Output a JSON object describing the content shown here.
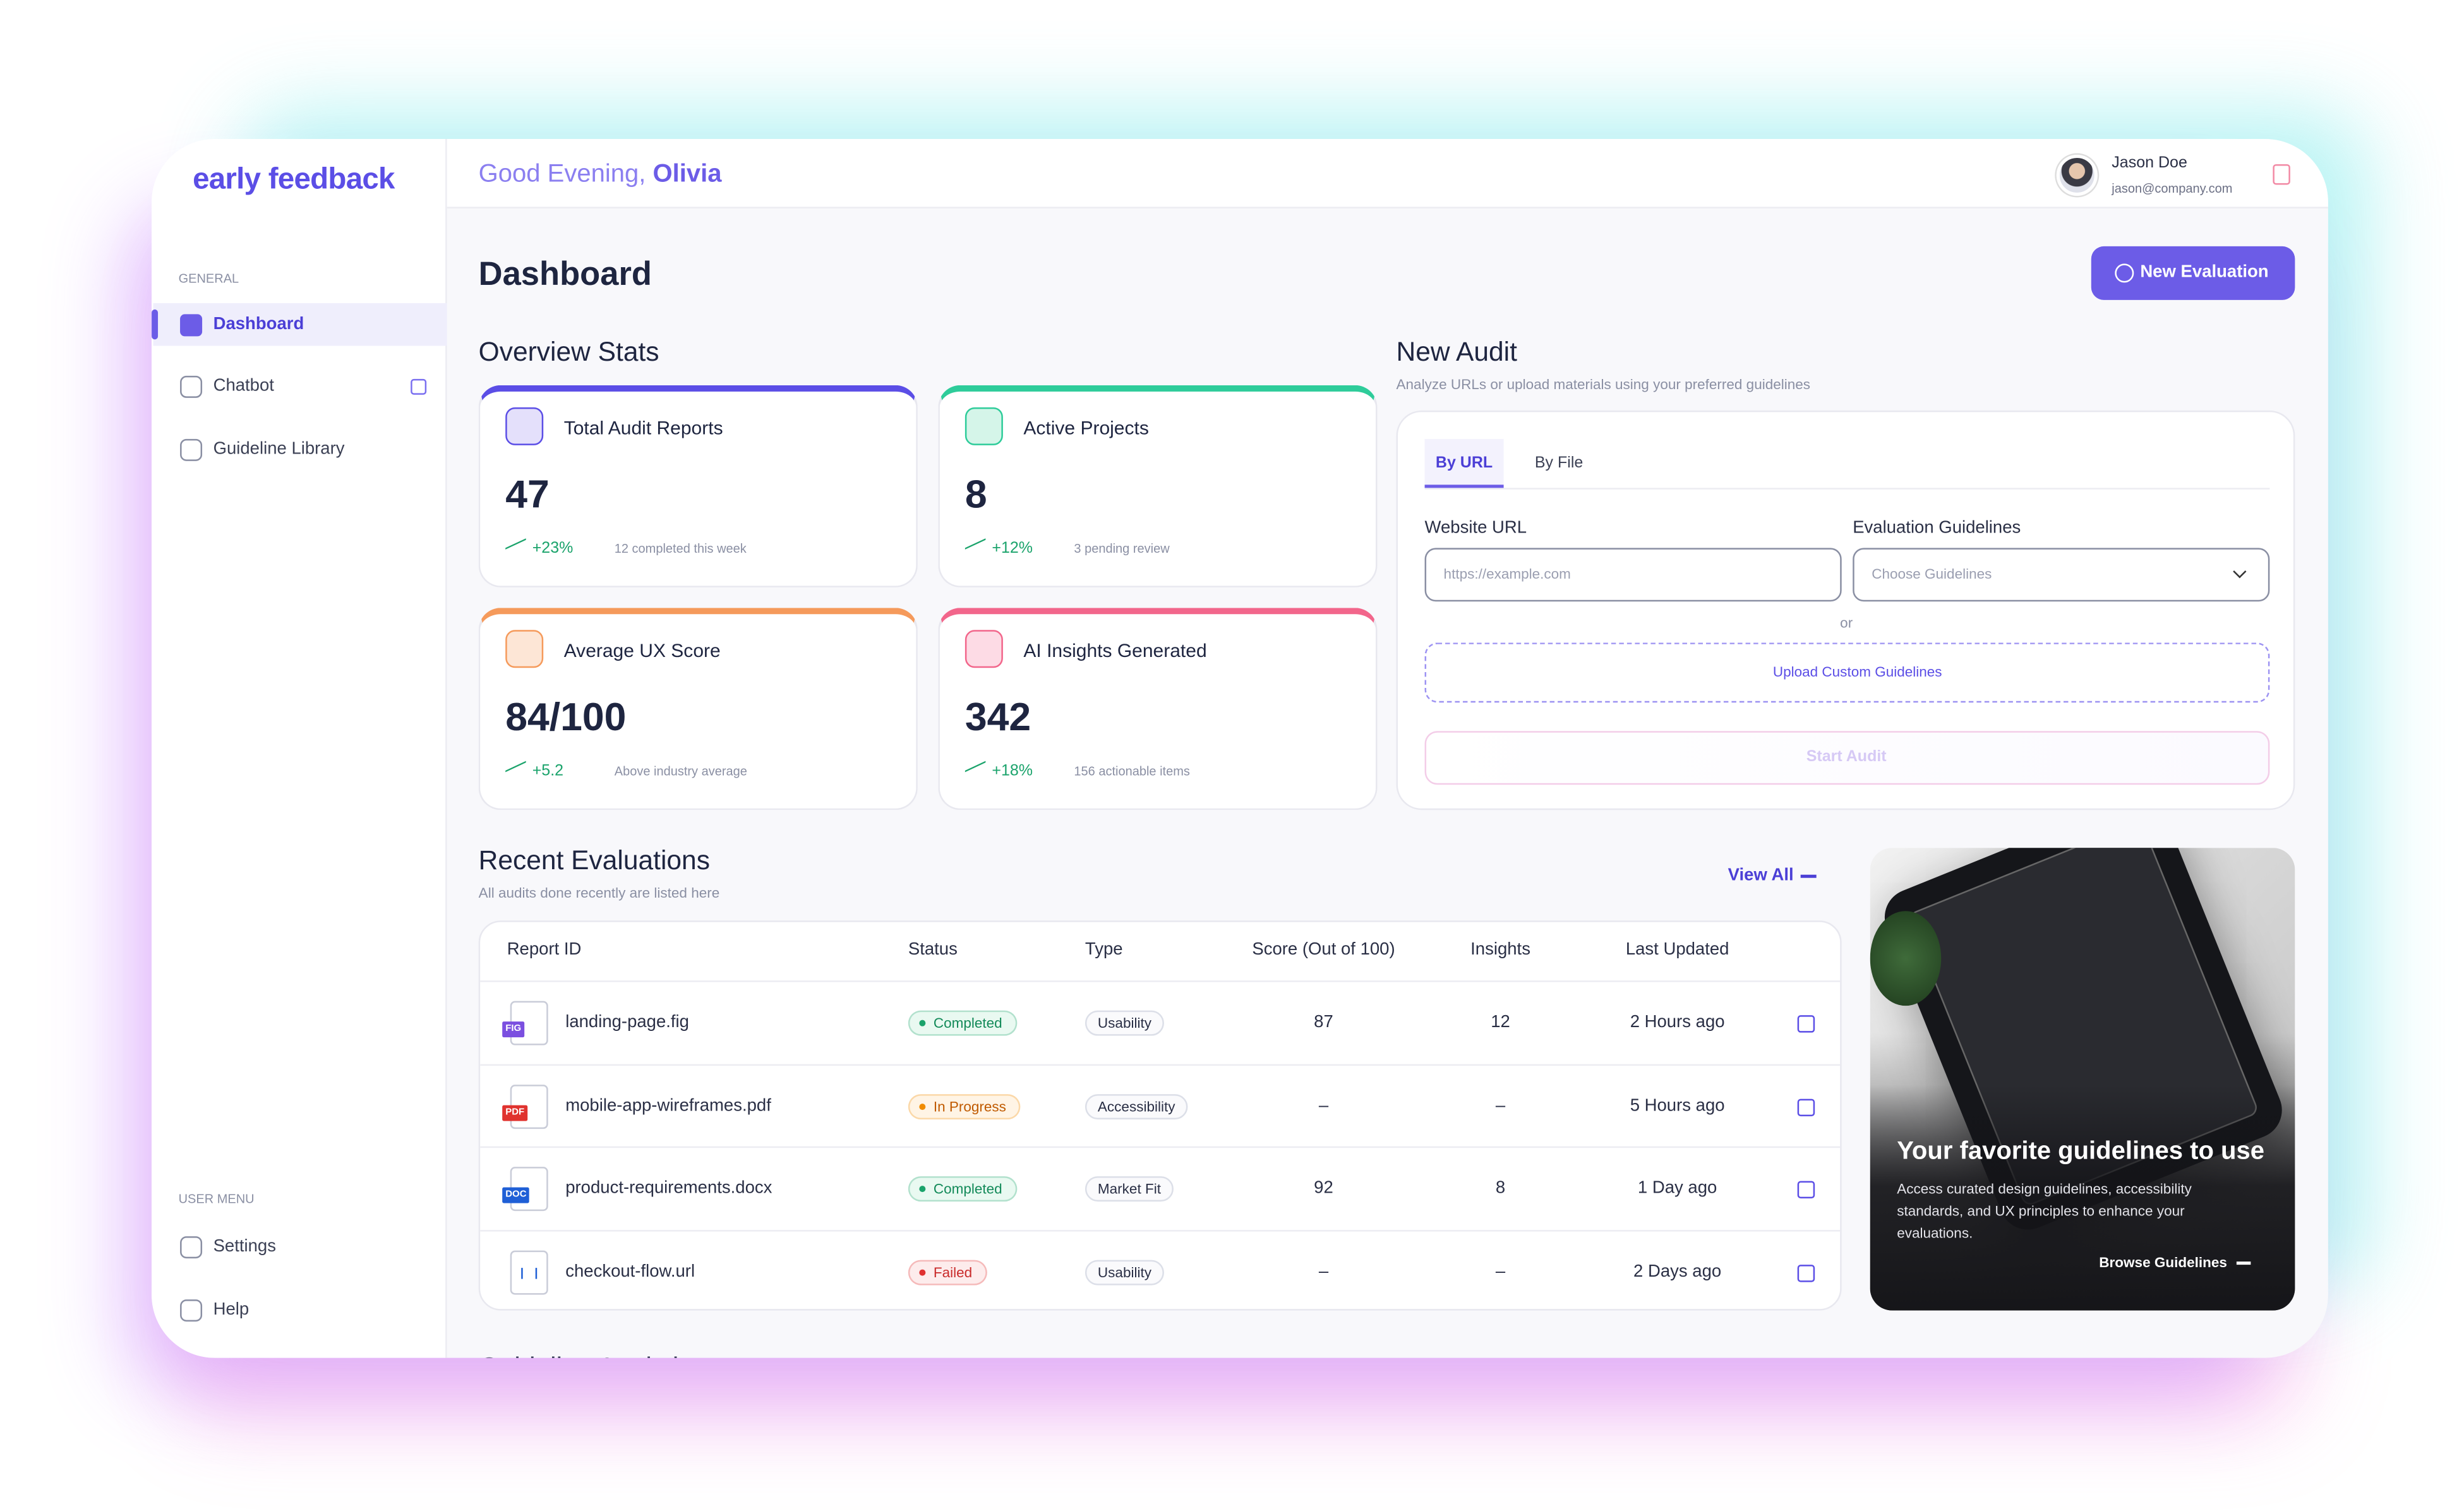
{
  "brand": "early feedback",
  "header": {
    "greeting": "Good Evening,",
    "name": "Olivia",
    "user_name": "Jason Doe",
    "user_email": "jason@company.com"
  },
  "sidebar": {
    "sections": [
      {
        "label": "GENERAL",
        "items": [
          "Dashboard",
          "Chatbot",
          "Guideline Library"
        ]
      },
      {
        "label": "USER MENU",
        "items": [
          "Settings",
          "Help"
        ]
      }
    ]
  },
  "page": {
    "title": "Dashboard",
    "new_button": "New Evaluation"
  },
  "overview": {
    "title": "Overview Stats",
    "stats": [
      {
        "title": "Total Audit Reports",
        "value": 47,
        "change": "+23%",
        "note": "12 completed this week"
      },
      {
        "title": "Active Projects",
        "value": 8,
        "change": "+12%",
        "note": "3 pending review"
      },
      {
        "title": "Average UX Score",
        "value": "84/100",
        "change": "+5.2",
        "note": "Above industry average"
      },
      {
        "title": "AI Insights Generated",
        "value": 342,
        "change": "+18%",
        "note": "156 actionable items"
      }
    ]
  },
  "new_audit": {
    "title": "New Audit",
    "subtitle": "Analyze URLs or upload materials using your preferred guidelines",
    "tabs": [
      "By URL",
      "By File"
    ],
    "url_label": "Website URL",
    "url_placeholder": "https://example.com",
    "guidelines_label": "Evaluation Guidelines",
    "guidelines_placeholder": "Choose Guidelines",
    "or": "or",
    "upload": "Upload Custom Guidelines",
    "start": "Start Audit"
  },
  "recent": {
    "title": "Recent Evaluations",
    "subtitle": "All audits done recently are listed here",
    "view_all": "View All",
    "columns": [
      "Report ID",
      "Status",
      "Type",
      "Score (Out of 100)",
      "Insights",
      "Last Updated"
    ],
    "rows": [
      {
        "file_type": "FIG",
        "report": "landing-page.fig",
        "status": "Completed",
        "type": "Usability",
        "score": 87,
        "insights": 12,
        "updated": "2 Hours ago"
      },
      {
        "file_type": "PDF",
        "report": "mobile-app-wireframes.pdf",
        "status": "In Progress",
        "type": "Accessibility",
        "score": "–",
        "insights": "–",
        "updated": "5 Hours ago"
      },
      {
        "file_type": "DOC",
        "report": "product-requirements.docx",
        "status": "Completed",
        "type": "Market Fit",
        "score": 92,
        "insights": 8,
        "updated": "1 Day ago"
      },
      {
        "report": "checkout-flow.url",
        "status": "Failed",
        "type": "Usability",
        "score": "–",
        "insights": "–",
        "updated": "2 Days ago"
      }
    ]
  },
  "promo": {
    "title": "Your favorite guidelines to use",
    "text": "Access curated design guidelines, accessibility standards, and UX principles to enhance your evaluations.",
    "link": "Browse Guidelines"
  },
  "next_section": "Guideline Analytics"
}
